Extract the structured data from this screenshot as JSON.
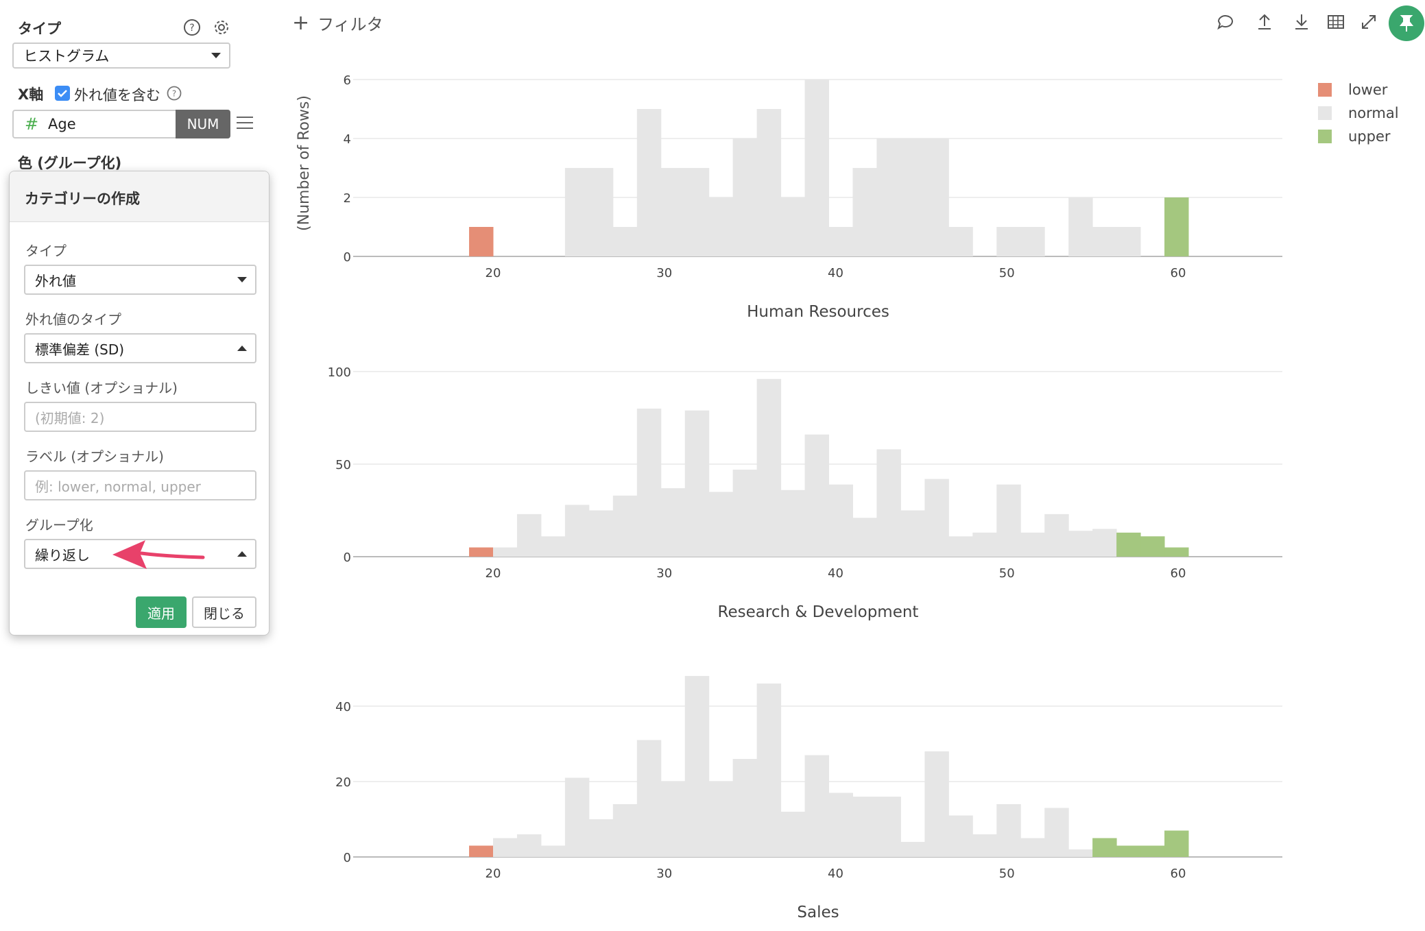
{
  "config": {
    "type_label": "タイプ",
    "type_value": "ヒストグラム",
    "x_axis_label": "X軸",
    "include_outliers_label": "外れ値を含む",
    "column_icon": "#",
    "column_name": "Age",
    "column_type": "NUM",
    "color_label": "色 (グループ化)"
  },
  "popup": {
    "title": "カテゴリーの作成",
    "type_label": "タイプ",
    "type_value": "外れ値",
    "outlier_type_label": "外れ値のタイプ",
    "outlier_type_value": "標準偏差 (SD)",
    "threshold_label": "しきい値 (オプショナル)",
    "threshold_placeholder": "(初期値: 2)",
    "label_label": "ラベル (オプショナル)",
    "label_placeholder": "例: lower, normal, upper",
    "grouping_label": "グループ化",
    "grouping_value": "繰り返し",
    "apply_label": "適用",
    "close_label": "閉じる"
  },
  "toolbar": {
    "filter_label": "フィルタ",
    "icons": [
      "comment-icon",
      "upload-icon",
      "download-icon",
      "table-icon",
      "expand-icon",
      "pin-icon"
    ],
    "pin_color": "#3aa76d"
  },
  "annotation": {
    "arrow_color": "#e8416a"
  },
  "chart_data": {
    "type": "bar",
    "ylabel": "(Number of Rows)",
    "bin_width": 1.4,
    "x_ticks": [
      20,
      30,
      40,
      50,
      60
    ],
    "legend": [
      {
        "name": "lower",
        "color": "#e58e76"
      },
      {
        "name": "normal",
        "color": "#e6e6e6"
      },
      {
        "name": "upper",
        "color": "#a4c77f"
      }
    ],
    "panels": [
      {
        "title": "Human Resources",
        "ylim": [
          0,
          6
        ],
        "y_ticks": [
          0,
          2,
          4,
          6
        ],
        "bars": [
          {
            "x": 18.6,
            "y": 1,
            "group": "lower"
          },
          {
            "x": 24.2,
            "y": 3,
            "group": "normal"
          },
          {
            "x": 25.6,
            "y": 3,
            "group": "normal"
          },
          {
            "x": 27.0,
            "y": 1,
            "group": "normal"
          },
          {
            "x": 28.4,
            "y": 5,
            "group": "normal"
          },
          {
            "x": 29.8,
            "y": 3,
            "group": "normal"
          },
          {
            "x": 31.2,
            "y": 3,
            "group": "normal"
          },
          {
            "x": 32.6,
            "y": 2,
            "group": "normal"
          },
          {
            "x": 34.0,
            "y": 4,
            "group": "normal"
          },
          {
            "x": 35.4,
            "y": 5,
            "group": "normal"
          },
          {
            "x": 36.8,
            "y": 2,
            "group": "normal"
          },
          {
            "x": 38.2,
            "y": 6,
            "group": "normal"
          },
          {
            "x": 39.6,
            "y": 1,
            "group": "normal"
          },
          {
            "x": 41.0,
            "y": 3,
            "group": "normal"
          },
          {
            "x": 42.4,
            "y": 4,
            "group": "normal"
          },
          {
            "x": 43.8,
            "y": 4,
            "group": "normal"
          },
          {
            "x": 45.2,
            "y": 4,
            "group": "normal"
          },
          {
            "x": 46.6,
            "y": 1,
            "group": "normal"
          },
          {
            "x": 49.4,
            "y": 1,
            "group": "normal"
          },
          {
            "x": 50.8,
            "y": 1,
            "group": "normal"
          },
          {
            "x": 53.6,
            "y": 2,
            "group": "normal"
          },
          {
            "x": 55.0,
            "y": 1,
            "group": "normal"
          },
          {
            "x": 56.4,
            "y": 1,
            "group": "normal"
          },
          {
            "x": 59.2,
            "y": 2,
            "group": "upper"
          }
        ]
      },
      {
        "title": "Research & Development",
        "ylim": [
          0,
          100
        ],
        "y_ticks": [
          0,
          50,
          100
        ],
        "bars": [
          {
            "x": 18.6,
            "y": 5,
            "group": "lower"
          },
          {
            "x": 20.0,
            "y": 5,
            "group": "normal"
          },
          {
            "x": 21.4,
            "y": 23,
            "group": "normal"
          },
          {
            "x": 22.8,
            "y": 11,
            "group": "normal"
          },
          {
            "x": 24.2,
            "y": 28,
            "group": "normal"
          },
          {
            "x": 25.6,
            "y": 25,
            "group": "normal"
          },
          {
            "x": 27.0,
            "y": 33,
            "group": "normal"
          },
          {
            "x": 28.4,
            "y": 80,
            "group": "normal"
          },
          {
            "x": 29.8,
            "y": 37,
            "group": "normal"
          },
          {
            "x": 31.2,
            "y": 79,
            "group": "normal"
          },
          {
            "x": 32.6,
            "y": 35,
            "group": "normal"
          },
          {
            "x": 34.0,
            "y": 47,
            "group": "normal"
          },
          {
            "x": 35.4,
            "y": 96,
            "group": "normal"
          },
          {
            "x": 36.8,
            "y": 36,
            "group": "normal"
          },
          {
            "x": 38.2,
            "y": 66,
            "group": "normal"
          },
          {
            "x": 39.6,
            "y": 39,
            "group": "normal"
          },
          {
            "x": 41.0,
            "y": 21,
            "group": "normal"
          },
          {
            "x": 42.4,
            "y": 58,
            "group": "normal"
          },
          {
            "x": 43.8,
            "y": 25,
            "group": "normal"
          },
          {
            "x": 45.2,
            "y": 42,
            "group": "normal"
          },
          {
            "x": 46.6,
            "y": 11,
            "group": "normal"
          },
          {
            "x": 48.0,
            "y": 13,
            "group": "normal"
          },
          {
            "x": 49.4,
            "y": 39,
            "group": "normal"
          },
          {
            "x": 50.8,
            "y": 13,
            "group": "normal"
          },
          {
            "x": 52.2,
            "y": 23,
            "group": "normal"
          },
          {
            "x": 53.6,
            "y": 14,
            "group": "normal"
          },
          {
            "x": 55.0,
            "y": 15,
            "group": "normal"
          },
          {
            "x": 56.4,
            "y": 13,
            "group": "upper"
          },
          {
            "x": 57.8,
            "y": 11,
            "group": "upper"
          },
          {
            "x": 59.2,
            "y": 5,
            "group": "upper"
          }
        ]
      },
      {
        "title": "Sales",
        "ylim": [
          0,
          48
        ],
        "y_ticks": [
          0,
          20,
          40
        ],
        "bars": [
          {
            "x": 18.6,
            "y": 3,
            "group": "lower"
          },
          {
            "x": 20.0,
            "y": 5,
            "group": "normal"
          },
          {
            "x": 21.4,
            "y": 6,
            "group": "normal"
          },
          {
            "x": 22.8,
            "y": 3,
            "group": "normal"
          },
          {
            "x": 24.2,
            "y": 21,
            "group": "normal"
          },
          {
            "x": 25.6,
            "y": 10,
            "group": "normal"
          },
          {
            "x": 27.0,
            "y": 14,
            "group": "normal"
          },
          {
            "x": 28.4,
            "y": 31,
            "group": "normal"
          },
          {
            "x": 29.8,
            "y": 20,
            "group": "normal"
          },
          {
            "x": 31.2,
            "y": 48,
            "group": "normal"
          },
          {
            "x": 32.6,
            "y": 20,
            "group": "normal"
          },
          {
            "x": 34.0,
            "y": 26,
            "group": "normal"
          },
          {
            "x": 35.4,
            "y": 46,
            "group": "normal"
          },
          {
            "x": 36.8,
            "y": 12,
            "group": "normal"
          },
          {
            "x": 38.2,
            "y": 27,
            "group": "normal"
          },
          {
            "x": 39.6,
            "y": 17,
            "group": "normal"
          },
          {
            "x": 41.0,
            "y": 16,
            "group": "normal"
          },
          {
            "x": 42.4,
            "y": 16,
            "group": "normal"
          },
          {
            "x": 43.8,
            "y": 4,
            "group": "normal"
          },
          {
            "x": 45.2,
            "y": 28,
            "group": "normal"
          },
          {
            "x": 46.6,
            "y": 11,
            "group": "normal"
          },
          {
            "x": 48.0,
            "y": 6,
            "group": "normal"
          },
          {
            "x": 49.4,
            "y": 14,
            "group": "normal"
          },
          {
            "x": 50.8,
            "y": 5,
            "group": "normal"
          },
          {
            "x": 52.2,
            "y": 13,
            "group": "normal"
          },
          {
            "x": 53.6,
            "y": 2,
            "group": "normal"
          },
          {
            "x": 55.0,
            "y": 5,
            "group": "upper"
          },
          {
            "x": 56.4,
            "y": 3,
            "group": "upper"
          },
          {
            "x": 57.8,
            "y": 3,
            "group": "upper"
          },
          {
            "x": 59.2,
            "y": 7,
            "group": "upper"
          }
        ]
      }
    ]
  }
}
